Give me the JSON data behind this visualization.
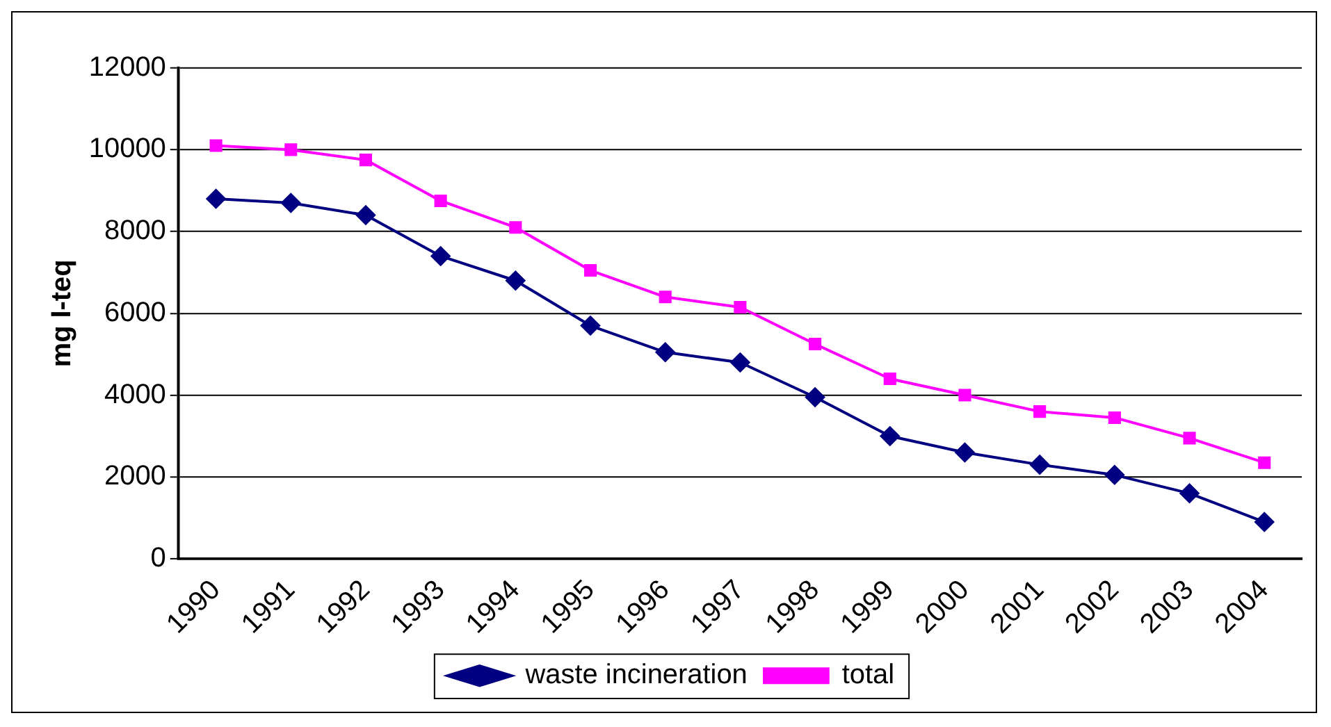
{
  "chart_data": {
    "type": "line",
    "ylabel": "mg I-teq",
    "categories": [
      "1990",
      "1991",
      "1992",
      "1993",
      "1994",
      "1995",
      "1996",
      "1997",
      "1998",
      "1999",
      "2000",
      "2001",
      "2002",
      "2003",
      "2004"
    ],
    "series": [
      {
        "name": "waste incineration",
        "color": "#000080",
        "marker": "diamond",
        "values": [
          8800,
          8700,
          8400,
          7400,
          6800,
          5700,
          5050,
          4800,
          3950,
          3000,
          2600,
          2300,
          2050,
          1600,
          900
        ]
      },
      {
        "name": "total",
        "color": "#ff00ff",
        "marker": "square",
        "values": [
          10100,
          10000,
          9750,
          8750,
          8100,
          7050,
          6400,
          6150,
          5250,
          4400,
          4000,
          3600,
          3450,
          2950,
          2350
        ]
      }
    ],
    "ylim": [
      0,
      12000
    ],
    "yticks": [
      0,
      2000,
      4000,
      6000,
      8000,
      10000,
      12000
    ],
    "grid": "y",
    "legend": "bottom"
  }
}
